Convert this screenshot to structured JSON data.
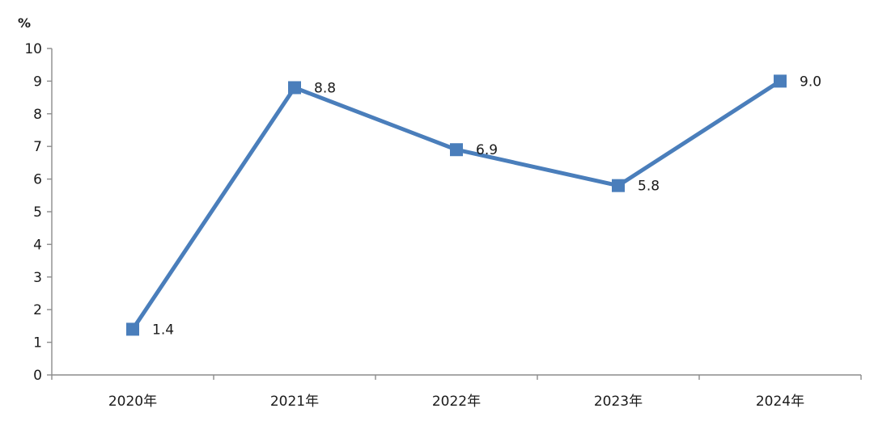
{
  "chart_data": {
    "type": "line",
    "unit": "%",
    "categories": [
      "2020年",
      "2021年",
      "2022年",
      "2023年",
      "2024年"
    ],
    "series": [
      {
        "values": [
          1.4,
          8.8,
          6.9,
          5.8,
          9.0
        ],
        "data_labels": [
          "1.4",
          "8.8",
          "6.9",
          "5.8",
          "9.0"
        ],
        "color": "#4a7ebb",
        "marker": "square"
      }
    ],
    "y_ticks": [
      "0",
      "1",
      "2",
      "3",
      "4",
      "5",
      "6",
      "7",
      "8",
      "9",
      "10"
    ],
    "ylim": [
      0,
      10
    ],
    "grid": false,
    "legend": "none"
  }
}
